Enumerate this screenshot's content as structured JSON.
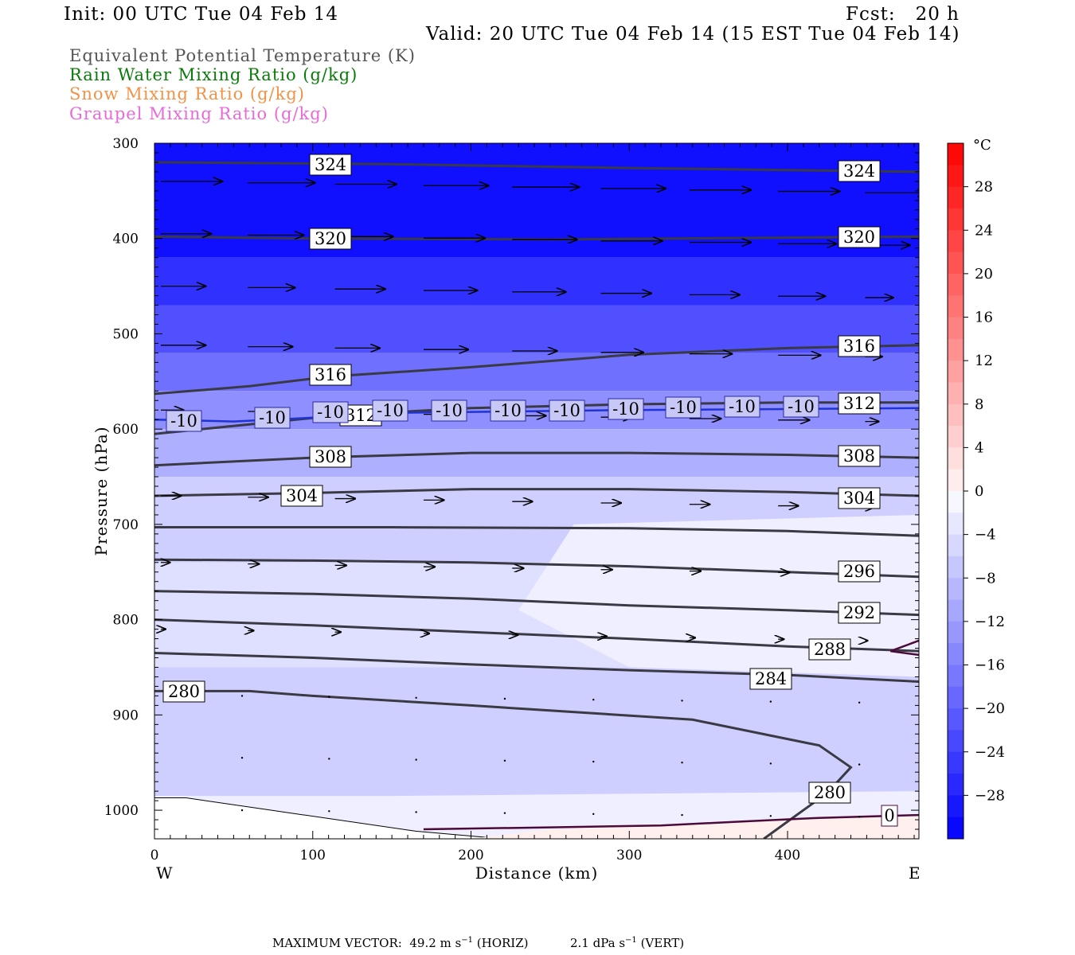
{
  "header": {
    "init": "Init: 00 UTC Tue 04 Feb 14",
    "fcst": "Fcst:   20 h",
    "valid": "Valid: 20 UTC Tue 04 Feb 14 (15 EST Tue 04 Feb 14)"
  },
  "legend": [
    {
      "label": "Equivalent Potential Temperature (K)",
      "color": "#555555"
    },
    {
      "label": "Rain Water Mixing Ratio (g/kg)",
      "color": "#0a7a0a"
    },
    {
      "label": "Snow Mixing Ratio (g/kg)",
      "color": "#f0924a"
    },
    {
      "label": "Graupel Mixing Ratio (g/kg)",
      "color": "#e86ad8"
    }
  ],
  "chart_data": {
    "type": "heatmap",
    "xlabel": "Distance (km)",
    "ylabel": "Pressure (hPa)",
    "x_ticks": [
      0,
      100,
      200,
      300,
      400
    ],
    "y_ticks": [
      300,
      400,
      500,
      600,
      700,
      800,
      900,
      1000
    ],
    "xlim": [
      0,
      483
    ],
    "ylim": [
      1030,
      300
    ],
    "x_end_labels": {
      "left": "W",
      "right": "E"
    },
    "theta_e_contours": [
      {
        "value": 324,
        "label": "324",
        "points": [
          [
            0,
            320
          ],
          [
            150,
            322
          ],
          [
            300,
            326
          ],
          [
            483,
            330
          ]
        ]
      },
      {
        "value": 320,
        "label": "320",
        "points": [
          [
            0,
            398
          ],
          [
            100,
            400
          ],
          [
            250,
            401
          ],
          [
            483,
            398
          ]
        ]
      },
      {
        "value": 316,
        "label": "316",
        "points": [
          [
            0,
            563
          ],
          [
            60,
            555
          ],
          [
            110,
            545
          ],
          [
            200,
            535
          ],
          [
            300,
            522
          ],
          [
            400,
            515
          ],
          [
            483,
            512
          ]
        ]
      },
      {
        "value": 312,
        "label": "312",
        "points": [
          [
            0,
            605
          ],
          [
            60,
            595
          ],
          [
            120,
            585
          ],
          [
            200,
            578
          ],
          [
            300,
            574
          ],
          [
            400,
            572
          ],
          [
            483,
            572
          ]
        ]
      },
      {
        "value": 308,
        "label": "308",
        "points": [
          [
            0,
            638
          ],
          [
            100,
            630
          ],
          [
            200,
            625
          ],
          [
            300,
            625
          ],
          [
            400,
            627
          ],
          [
            483,
            630
          ]
        ]
      },
      {
        "value": 304,
        "label": "304",
        "points": [
          [
            0,
            670
          ],
          [
            100,
            667
          ],
          [
            200,
            663
          ],
          [
            300,
            663
          ],
          [
            400,
            666
          ],
          [
            483,
            670
          ]
        ]
      },
      {
        "value": 300,
        "label": "",
        "points": [
          [
            0,
            703
          ],
          [
            150,
            703
          ],
          [
            300,
            704
          ],
          [
            400,
            707
          ],
          [
            483,
            712
          ]
        ]
      },
      {
        "value": 296,
        "label": "296",
        "points": [
          [
            0,
            737
          ],
          [
            100,
            738
          ],
          [
            200,
            740
          ],
          [
            300,
            744
          ],
          [
            400,
            750
          ],
          [
            483,
            755
          ]
        ]
      },
      {
        "value": 292,
        "label": "292",
        "points": [
          [
            0,
            770
          ],
          [
            100,
            773
          ],
          [
            200,
            778
          ],
          [
            300,
            785
          ],
          [
            400,
            790
          ],
          [
            483,
            795
          ]
        ]
      },
      {
        "value": 288,
        "label": "288",
        "points": [
          [
            0,
            800
          ],
          [
            100,
            806
          ],
          [
            200,
            813
          ],
          [
            300,
            820
          ],
          [
            400,
            828
          ],
          [
            483,
            833
          ]
        ]
      },
      {
        "value": 284,
        "label": "284",
        "points": [
          [
            0,
            835
          ],
          [
            100,
            840
          ],
          [
            200,
            847
          ],
          [
            300,
            853
          ],
          [
            400,
            858
          ],
          [
            483,
            865
          ]
        ]
      },
      {
        "value": 280,
        "label": "280",
        "points": [
          [
            0,
            875
          ],
          [
            60,
            875
          ],
          [
            100,
            880
          ],
          [
            200,
            890
          ],
          [
            340,
            905
          ],
          [
            420,
            932
          ],
          [
            440,
            955
          ],
          [
            425,
            982
          ],
          [
            400,
            1012
          ],
          [
            385,
            1030
          ]
        ]
      }
    ],
    "temperature_zero_contour": {
      "value": 0,
      "label": "0",
      "points": [
        [
          170,
          1020
        ],
        [
          250,
          1018
        ],
        [
          320,
          1016
        ],
        [
          370,
          1012
        ],
        [
          420,
          1008
        ],
        [
          483,
          1005
        ]
      ]
    },
    "temperature_minus10_contour": {
      "value": -10,
      "label": "-10",
      "points": [
        [
          0,
          590
        ],
        [
          50,
          592
        ],
        [
          100,
          588
        ],
        [
          150,
          583
        ],
        [
          200,
          582
        ],
        [
          300,
          580
        ],
        [
          400,
          579
        ],
        [
          483,
          578
        ]
      ]
    },
    "colorbar": {
      "unit": "°C",
      "ticks": [
        28,
        24,
        20,
        16,
        12,
        8,
        4,
        0,
        -4,
        -8,
        -12,
        -16,
        -20,
        -24,
        -28
      ],
      "tick_labels": [
        "28",
        "24",
        "20",
        "16",
        "12",
        "8",
        "4",
        "0",
        "−4",
        "−8",
        "−12",
        "−16",
        "−20",
        "−24",
        "−28"
      ],
      "range": [
        -32,
        32
      ]
    },
    "temperature_bands_top_to_bottom": [
      {
        "p_top": 300,
        "p_bot": 420,
        "t": -30
      },
      {
        "p_top": 420,
        "p_bot": 470,
        "t": -26
      },
      {
        "p_top": 470,
        "p_bot": 520,
        "t": -22
      },
      {
        "p_top": 520,
        "p_bot": 560,
        "t": -18
      },
      {
        "p_top": 560,
        "p_bot": 600,
        "t": -14
      },
      {
        "p_top": 600,
        "p_bot": 650,
        "t": -10
      },
      {
        "p_top": 650,
        "p_bot": 740,
        "t": -6
      },
      {
        "p_top": 740,
        "p_bot": 850,
        "t": -4
      },
      {
        "p_top": 850,
        "p_bot": 1030,
        "t": -6
      }
    ]
  },
  "footer": {
    "label": "MAXIMUM VECTOR:",
    "horiz_value": "49.2 m s",
    "horiz_exp": "−1",
    "horiz_unit": "(HORIZ)",
    "vert_value": "2.1 dPa s",
    "vert_exp": "−1",
    "vert_unit": "(VERT)"
  }
}
